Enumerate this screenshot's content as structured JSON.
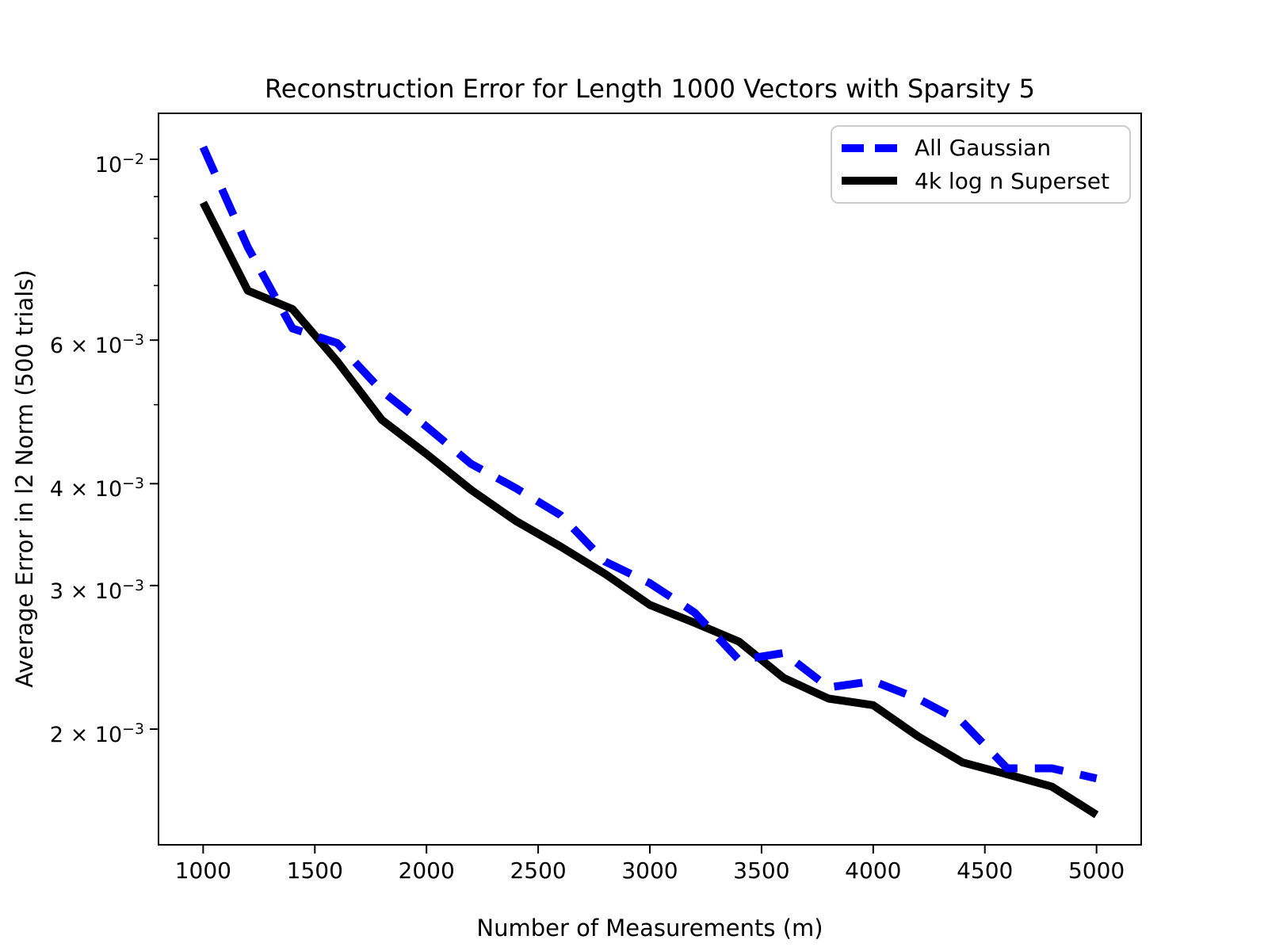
{
  "figure": {
    "title": "Reconstruction Error for Length 1000 Vectors with Sparsity 5",
    "xlabel": "Number of Measurements (m)",
    "ylabel": "Average Error in l2 Norm (500 trials)"
  },
  "legend": {
    "items": [
      {
        "label": "All Gaussian",
        "color": "#0000ff",
        "style": "dashed"
      },
      {
        "label": "4k log n Superset",
        "color": "#000000",
        "style": "solid"
      }
    ],
    "position": "upper right"
  },
  "colors": {
    "accent_blue": "#0000ff",
    "line_black": "#000000",
    "legend_border": "#cccccc",
    "axis": "#000000",
    "background": "#ffffff"
  },
  "chart_data": {
    "type": "line",
    "title": "Reconstruction Error for Length 1000 Vectors with Sparsity 5",
    "xlabel": "Number of Measurements (m)",
    "ylabel": "Average Error in l2 Norm (500 trials)",
    "grid": false,
    "legend_position": "upper right",
    "y_scale": "log",
    "xlim": [
      800,
      5200
    ],
    "ylim": [
      0.0014424,
      0.011386
    ],
    "x": [
      1000,
      1200,
      1400,
      1600,
      1800,
      2000,
      2200,
      2400,
      2600,
      2800,
      3000,
      3200,
      3400,
      3600,
      3800,
      4000,
      4200,
      4400,
      4600,
      4800,
      5000
    ],
    "series": [
      {
        "name": "All Gaussian",
        "color": "#0000ff",
        "dash": [
          36,
          22
        ],
        "linewidth": 10,
        "values": [
          0.01035,
          0.0078,
          0.0062,
          0.00595,
          0.0052,
          0.0047,
          0.00423,
          0.00395,
          0.00366,
          0.00321,
          0.00302,
          0.00278,
          0.00243,
          0.00248,
          0.00225,
          0.00229,
          0.00218,
          0.00204,
          0.00179,
          0.00179,
          0.00174
        ]
      },
      {
        "name": "4k log n Superset",
        "color": "#000000",
        "dash": null,
        "linewidth": 10,
        "values": [
          0.00885,
          0.0069,
          0.00655,
          0.00565,
          0.00479,
          0.00435,
          0.00393,
          0.0036,
          0.00335,
          0.0031,
          0.00284,
          0.0027,
          0.00256,
          0.00231,
          0.00218,
          0.00214,
          0.00196,
          0.00182,
          0.00176,
          0.0017,
          0.00157
        ]
      }
    ],
    "x_ticks": {
      "values": [
        1000,
        1500,
        2000,
        2500,
        3000,
        3500,
        4000,
        4500,
        5000
      ],
      "labels": [
        "1000",
        "1500",
        "2000",
        "2500",
        "3000",
        "3500",
        "4000",
        "4500",
        "5000"
      ]
    },
    "y_major_ticks": [
      {
        "value": 0.01,
        "label_pre": "10",
        "label_sup": "−2"
      },
      {
        "value": 0.006,
        "label_pre": "6 × 10",
        "label_sup": "−3"
      },
      {
        "value": 0.004,
        "label_pre": "4 × 10",
        "label_sup": "−3"
      },
      {
        "value": 0.003,
        "label_pre": "3 × 10",
        "label_sup": "−3"
      },
      {
        "value": 0.002,
        "label_pre": "2 × 10",
        "label_sup": "−3"
      }
    ],
    "y_minor_ticks": [
      0.009,
      0.008,
      0.007,
      0.005
    ]
  }
}
